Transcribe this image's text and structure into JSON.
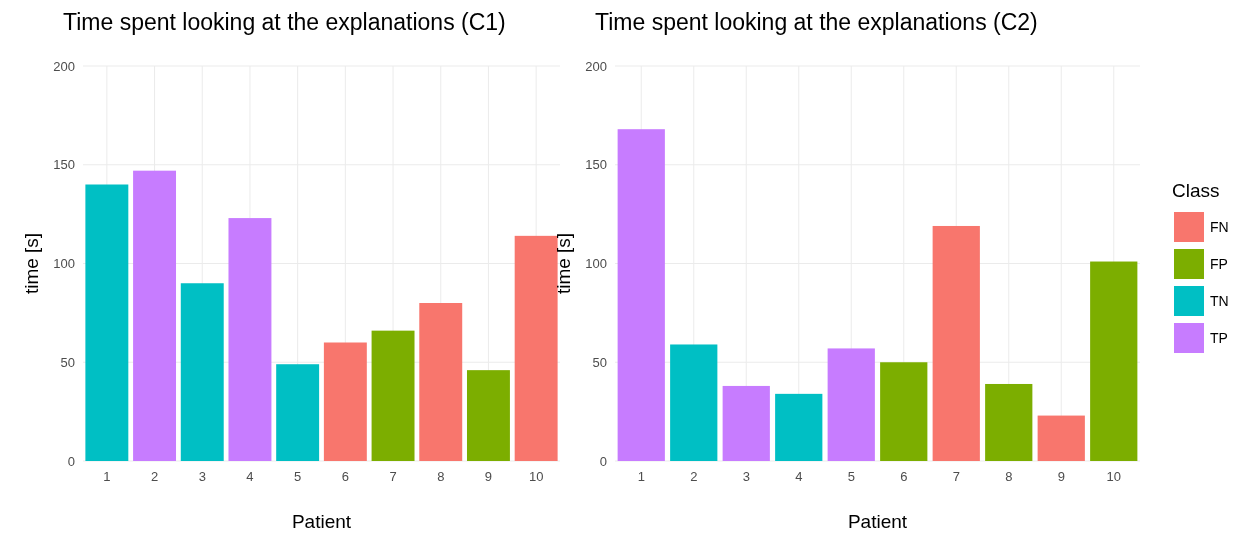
{
  "chart_data": [
    {
      "type": "bar",
      "title": "Time spent looking at the explanations (C1)",
      "xlabel": "Patient",
      "ylabel": "time [s]",
      "categories": [
        "1",
        "2",
        "3",
        "4",
        "5",
        "6",
        "7",
        "8",
        "9",
        "10"
      ],
      "values": [
        140,
        147,
        90,
        123,
        49,
        60,
        66,
        80,
        46,
        114
      ],
      "colors": [
        "#00bfc4",
        "#c77cff",
        "#00bfc4",
        "#c77cff",
        "#00bfc4",
        "#f8766d",
        "#7cae00",
        "#f8766d",
        "#7cae00",
        "#f8766d"
      ],
      "ylim": [
        0,
        200
      ],
      "yticks": [
        0,
        50,
        100,
        150,
        200
      ],
      "grid": true,
      "legend": false
    },
    {
      "type": "bar",
      "title": "Time spent looking at the explanations (C2)",
      "xlabel": "Patient",
      "ylabel": "time [s]",
      "legend_title": "Class",
      "categories": [
        "1",
        "2",
        "3",
        "4",
        "5",
        "6",
        "7",
        "8",
        "9",
        "10"
      ],
      "series": [
        {
          "name": "FN",
          "color": "#f8766d",
          "values": [
            null,
            null,
            null,
            null,
            null,
            null,
            119,
            null,
            23,
            null
          ]
        },
        {
          "name": "FP",
          "color": "#7cae00",
          "values": [
            null,
            null,
            null,
            null,
            null,
            50,
            null,
            39,
            null,
            101
          ]
        },
        {
          "name": "TN",
          "color": "#00bfc4",
          "values": [
            null,
            59,
            null,
            34,
            null,
            null,
            null,
            null,
            null,
            null
          ]
        },
        {
          "name": "TP",
          "color": "#c77cff",
          "values": [
            168,
            null,
            38,
            null,
            57,
            null,
            null,
            null,
            null,
            null
          ]
        }
      ],
      "ylim": [
        0,
        200
      ],
      "yticks": [
        0,
        50,
        100,
        150,
        200
      ],
      "grid": true,
      "legend": "right"
    }
  ]
}
